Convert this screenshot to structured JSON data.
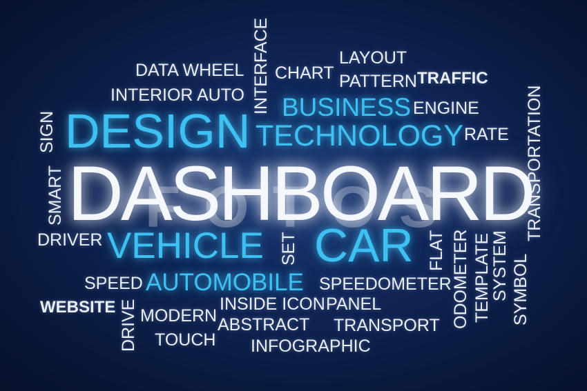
{
  "words": {
    "dashboard": "DASHBOARD",
    "design": "DESIGN",
    "technology": "TECHNOLOGY",
    "business": "BUSINESS",
    "vehicle": "VEHICLE",
    "car": "CAR",
    "automobile": "AUTOMOBILE",
    "data_wheel": "DATA WHEEL",
    "interior_auto": "INTERIOR AUTO",
    "interface": "INTERFACE",
    "chart": "CHART",
    "layout": "LAYOUT",
    "pattern": "PATTERN",
    "traffic": "TRAFFIC",
    "engine": "ENGINE",
    "rate": "RATE",
    "sign": "SIGN",
    "smart": "SMART",
    "transportation": "TRANSPORTATION",
    "driver": "DRIVER",
    "set": "SET",
    "flat": "FLAT",
    "odometer": "ODOMETER",
    "template": "TEMPLATE",
    "system": "SYSTEM",
    "symbol": "SYMBOL",
    "speed": "SPEED",
    "speedometer": "SPEEDOMETER",
    "website": "WEBSITE",
    "drive": "DRIVE",
    "modern": "MODERN",
    "inside_icon": "INSIDE ICON",
    "panel": "PANEL",
    "abstract": "ABSTRACT",
    "transport": "TRANSPORT",
    "touch": "TOUCH",
    "infographic": "INFOGRAPHIC"
  },
  "watermark": "FOTOS",
  "colors": {
    "accent": "#3fc0f2",
    "text": "#e9eef7",
    "background": "#0f2352"
  }
}
